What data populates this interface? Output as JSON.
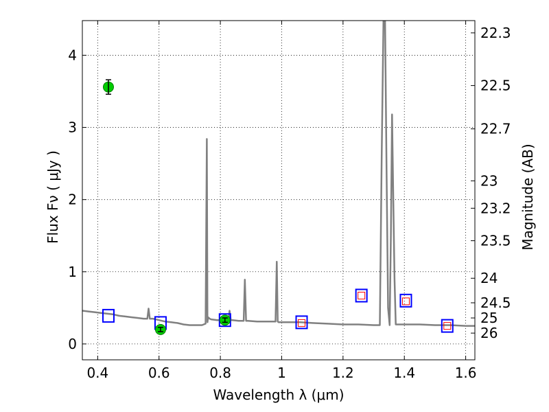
{
  "chart_data": {
    "type": "line",
    "xlabel": "Wavelength  λ (μm)",
    "ylabel": "Flux  Fν  ( μJy )",
    "ylabel_right": "Magnitude (AB)",
    "xlim": [
      0.35,
      1.63
    ],
    "ylim": [
      -0.22,
      4.48
    ],
    "x_ticks": [
      0.4,
      0.6,
      0.8,
      1.0,
      1.2,
      1.4,
      1.6
    ],
    "x_tick_labels": [
      "0.4",
      "0.6",
      "0.8",
      "1",
      "1.2",
      "1.4",
      "1.6"
    ],
    "y_ticks": [
      0,
      1,
      2,
      3,
      4
    ],
    "y_tick_labels": [
      "0",
      "1",
      "2",
      "3",
      "4"
    ],
    "right_ticks": [
      {
        "label": "22.3",
        "flux": 4.31
      },
      {
        "label": "22.5",
        "flux": 3.58
      },
      {
        "label": "22.7",
        "flux": 2.98
      },
      {
        "label": "23",
        "flux": 2.26
      },
      {
        "label": "23.2",
        "flux": 1.88
      },
      {
        "label": "23.5",
        "flux": 1.43
      },
      {
        "label": "24",
        "flux": 0.91
      },
      {
        "label": "24.5",
        "flux": 0.57
      },
      {
        "label": "25",
        "flux": 0.36
      },
      {
        "label": "26",
        "flux": 0.15
      }
    ],
    "grid": true,
    "series": [
      {
        "kind": "spectrum",
        "color": "#808080",
        "x": [
          0.35,
          0.37,
          0.39,
          0.41,
          0.43,
          0.45,
          0.47,
          0.49,
          0.51,
          0.53,
          0.55,
          0.562,
          0.566,
          0.57,
          0.58,
          0.6,
          0.62,
          0.64,
          0.66,
          0.68,
          0.7,
          0.72,
          0.74,
          0.752,
          0.756,
          0.758,
          0.76,
          0.765,
          0.77,
          0.79,
          0.81,
          0.826,
          0.83,
          0.834,
          0.84,
          0.86,
          0.876,
          0.88,
          0.884,
          0.89,
          0.92,
          0.95,
          0.98,
          0.984,
          0.987,
          0.99,
          1.0,
          1.03,
          1.06,
          1.1,
          1.15,
          1.2,
          1.25,
          1.3,
          1.31,
          1.32,
          1.326,
          1.332,
          1.337,
          1.342,
          1.347,
          1.352,
          1.356,
          1.36,
          1.364,
          1.368,
          1.372,
          1.376,
          1.4,
          1.45,
          1.5,
          1.55,
          1.6,
          1.63
        ],
        "y": [
          0.46,
          0.45,
          0.44,
          0.43,
          0.42,
          0.41,
          0.39,
          0.38,
          0.37,
          0.36,
          0.35,
          0.35,
          0.49,
          0.35,
          0.35,
          0.33,
          0.31,
          0.3,
          0.29,
          0.27,
          0.26,
          0.26,
          0.26,
          0.28,
          2.84,
          0.3,
          0.37,
          0.35,
          0.34,
          0.33,
          0.33,
          0.33,
          0.46,
          0.33,
          0.33,
          0.32,
          0.32,
          0.89,
          0.32,
          0.32,
          0.31,
          0.31,
          0.31,
          1.14,
          0.31,
          0.3,
          0.3,
          0.3,
          0.3,
          0.29,
          0.28,
          0.27,
          0.27,
          0.26,
          0.26,
          0.26,
          2.6,
          4.48,
          4.48,
          2.4,
          0.5,
          0.26,
          1.5,
          3.18,
          2.0,
          0.9,
          0.27,
          0.27,
          0.27,
          0.27,
          0.26,
          0.26,
          0.25,
          0.25
        ]
      },
      {
        "kind": "observed_points",
        "color": "#00cc00",
        "points": [
          {
            "x": 0.435,
            "y": 3.56,
            "err": 0.1
          },
          {
            "x": 0.605,
            "y": 0.2,
            "err": 0.03
          },
          {
            "x": 0.815,
            "y": 0.33,
            "err": 0.03
          }
        ]
      },
      {
        "kind": "model_bands_blue",
        "color": "#0000ff",
        "points": [
          {
            "x": 0.435,
            "y": 0.39
          },
          {
            "x": 0.605,
            "y": 0.29
          },
          {
            "x": 0.815,
            "y": 0.33
          },
          {
            "x": 1.065,
            "y": 0.3
          },
          {
            "x": 1.26,
            "y": 0.67
          },
          {
            "x": 1.405,
            "y": 0.6
          },
          {
            "x": 1.54,
            "y": 0.25
          }
        ]
      },
      {
        "kind": "model_bands_red",
        "color": "#ff0000",
        "points": [
          {
            "x": 1.065,
            "y": 0.29
          },
          {
            "x": 1.26,
            "y": 0.67
          },
          {
            "x": 1.405,
            "y": 0.59
          },
          {
            "x": 1.54,
            "y": 0.25
          }
        ]
      }
    ]
  }
}
